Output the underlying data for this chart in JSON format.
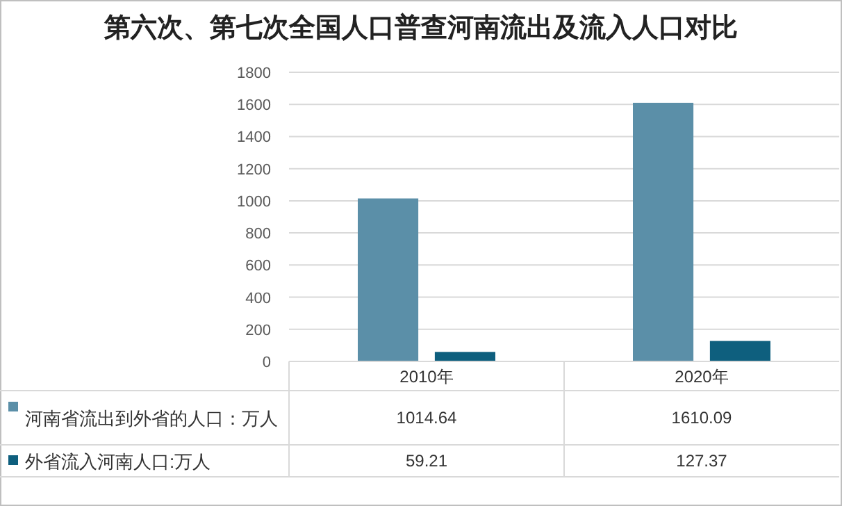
{
  "chart_data": {
    "type": "bar",
    "title": "第六次、第七次全国人口普查河南流出及流入人口对比",
    "categories": [
      "2010年",
      "2020年"
    ],
    "series": [
      {
        "name": "河南省流出到外省的人口：万人",
        "color": "#5b8fa8",
        "values": [
          1014.64,
          1610.09
        ]
      },
      {
        "name": "外省流入河南人口:万人",
        "color": "#0e5f7e",
        "values": [
          59.21,
          127.37
        ]
      }
    ],
    "ylim": [
      0,
      1800
    ],
    "yticks": [
      0,
      200,
      400,
      600,
      800,
      1000,
      1200,
      1400,
      1600,
      1800
    ],
    "grid": "y",
    "data_labels": true,
    "legend": "bottom"
  }
}
